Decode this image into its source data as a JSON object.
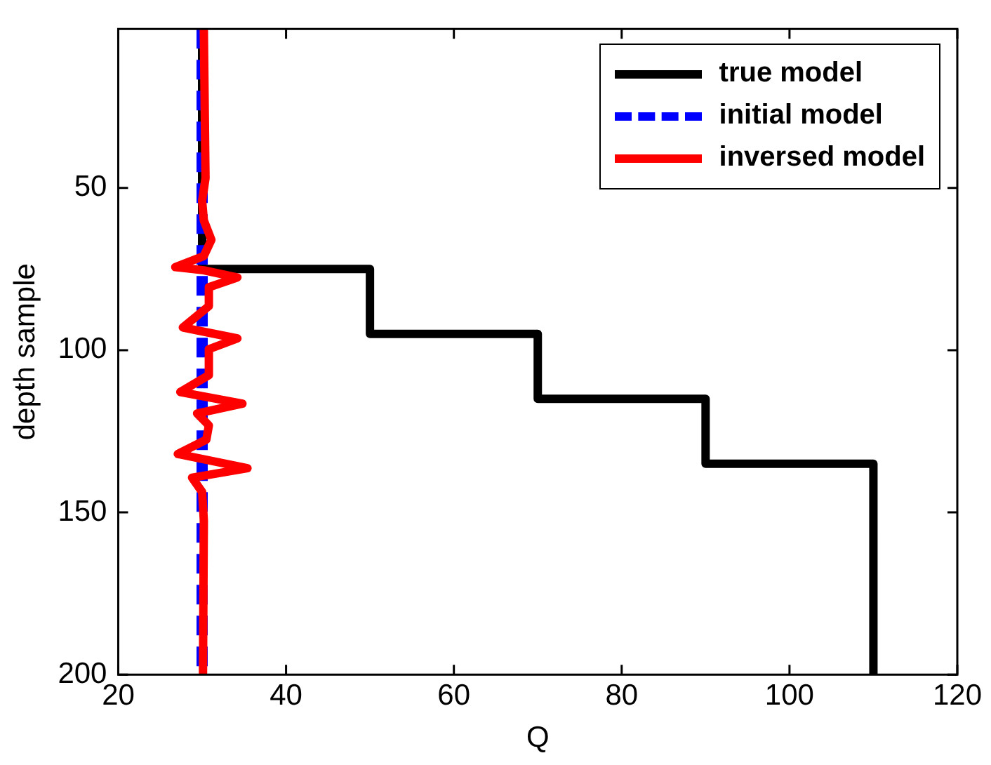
{
  "chart_data": {
    "type": "line",
    "xlabel": "Q",
    "ylabel": "depth sample",
    "xlim": [
      20,
      120
    ],
    "xticks": [
      20,
      40,
      60,
      80,
      100,
      120
    ],
    "ylim": [
      200,
      1
    ],
    "yticks": [
      50,
      100,
      150,
      200
    ],
    "grid": false,
    "legend": "top right",
    "marker": "none",
    "series": [
      {
        "name": "true model",
        "color": "#000000",
        "line_style": "solid",
        "x": [
          30,
          30,
          50,
          50,
          70,
          70,
          90,
          90,
          110,
          110
        ],
        "values": [
          1,
          75,
          75,
          95,
          95,
          115,
          115,
          135,
          135,
          200
        ]
      },
      {
        "name": "initial model",
        "color": "#0000ff",
        "line_style": "dashed",
        "x": [
          30,
          30
        ],
        "values": [
          1,
          200
        ]
      },
      {
        "name": "inversed model",
        "color": "#ff0000",
        "line_style": "solid",
        "x": [
          30.2,
          30.4,
          30,
          30.2,
          31.1,
          30.2,
          26.8,
          30.2,
          34.2,
          30.8,
          30.8,
          27.7,
          34.2,
          30.8,
          30.8,
          27.4,
          34.8,
          29.4,
          30.8,
          30.5,
          27.1,
          35.4,
          28.8,
          30,
          30.2,
          30.1
        ],
        "values": [
          1,
          47,
          54,
          60,
          66,
          71,
          74.4,
          75.4,
          77.6,
          80.6,
          86.4,
          93,
          96.4,
          99.7,
          107.7,
          112.9,
          116.5,
          119.5,
          123.2,
          127.6,
          132,
          136.4,
          139.3,
          143.7,
          152.5,
          200
        ]
      }
    ]
  }
}
